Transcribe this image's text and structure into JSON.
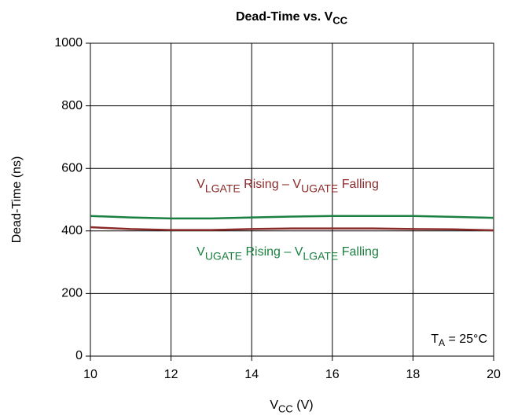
{
  "chart_data": {
    "type": "line",
    "title": [
      {
        "text": "Dead-Time vs. V"
      },
      {
        "text": "CC",
        "sub": true
      }
    ],
    "xlabel": [
      {
        "text": "V"
      },
      {
        "text": "CC",
        "sub": true
      },
      {
        "text": " (V)"
      }
    ],
    "ylabel": "Dead-Time (ns)",
    "x": [
      10,
      11,
      12,
      13,
      14,
      15,
      16,
      17,
      18,
      19,
      20
    ],
    "series": [
      {
        "name": [
          {
            "text": "V"
          },
          {
            "text": "LGATE",
            "sub": true
          },
          {
            "text": " Rising – V"
          },
          {
            "text": "UGATE",
            "sub": true
          },
          {
            "text": " Falling"
          }
        ],
        "color": "#8b2a2a",
        "values": [
          412,
          406,
          403,
          403,
          406,
          408,
          408,
          408,
          406,
          405,
          402
        ]
      },
      {
        "name": [
          {
            "text": "V"
          },
          {
            "text": "UGATE",
            "sub": true
          },
          {
            "text": " Rising – V"
          },
          {
            "text": "LGATE",
            "sub": true
          },
          {
            "text": " Falling"
          }
        ],
        "color": "#1a8040",
        "values": [
          448,
          443,
          440,
          440,
          443,
          446,
          448,
          448,
          448,
          445,
          442
        ]
      }
    ],
    "annotation": [
      {
        "text": "T"
      },
      {
        "text": "A",
        "sub": true
      },
      {
        "text": " = 25°C"
      }
    ],
    "xlim": [
      10,
      20
    ],
    "xticks": [
      10,
      12,
      14,
      16,
      18,
      20
    ],
    "ylim": [
      0,
      1000
    ],
    "yticks": [
      0,
      200,
      400,
      600,
      800,
      1000
    ],
    "grid": true
  }
}
